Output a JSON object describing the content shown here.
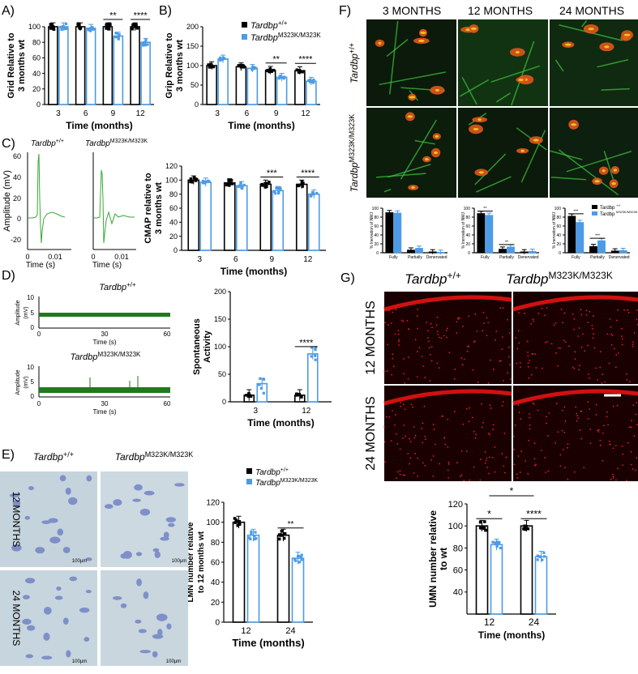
{
  "panel_labels": {
    "A": "A)",
    "B": "B)",
    "C": "C)",
    "D": "D)",
    "E": "E)",
    "F": "F)",
    "G": "G)"
  },
  "colors": {
    "wt": "#000000",
    "mut": "#4d9be6",
    "trace_c": "#38a838",
    "trace_d": "#1f7a1f",
    "wt_bar": "#000000"
  },
  "genotypes": {
    "wt_gene": "Tardbp",
    "wt_sup": "+/+",
    "mut_gene": "Tardbp",
    "mut_sup": "M323K/M323K"
  },
  "fig_text": {
    "time_months": "Time (months)",
    "time_s": "Time (s)",
    "amplitude_mv": "Amplitude (mV)",
    "amp_small_1": "Amplitude",
    "amp_small_2": "(mV)",
    "months_3": "3  MONTHS",
    "months_12": "12  MONTHS",
    "months_24": "24  MONTHS",
    "scale_100um": "100µm",
    "f_x_fully": "Fully",
    "f_x_partially": "Partially",
    "f_x_denervated": "Denervated",
    "f_y": "% Inervation of NMJ"
  },
  "chart_data": [
    {
      "id": "A",
      "type": "bar",
      "categories": [
        "3",
        "6",
        "9",
        "12"
      ],
      "xlabel": "Time (months)",
      "ylabel_lines": [
        "Grid Relative to",
        "3  months wt"
      ],
      "ylim": [
        0,
        100
      ],
      "yticks": [
        0,
        20,
        40,
        60,
        80,
        100
      ],
      "series": [
        {
          "name": "Tardbp+/+",
          "values": [
            100,
            100,
            100,
            100
          ]
        },
        {
          "name": "TardbpM323K/M323K",
          "values": [
            100,
            98,
            88,
            80
          ]
        }
      ],
      "significance": [
        {
          "group": "9",
          "label": "**"
        },
        {
          "group": "12",
          "label": "****"
        }
      ]
    },
    {
      "id": "B",
      "type": "bar",
      "categories": [
        "3",
        "6",
        "9",
        "12"
      ],
      "xlabel": "Time (months)",
      "ylabel_lines": [
        "Grip Relative to",
        "3  months wt"
      ],
      "ylim": [
        0,
        200
      ],
      "yticks": [
        0,
        50,
        100,
        150,
        200
      ],
      "series": [
        {
          "name": "Tardbp+/+",
          "values": [
            100,
            97,
            88,
            87
          ]
        },
        {
          "name": "TardbpM323K/M323K",
          "values": [
            117,
            93,
            70,
            60
          ]
        }
      ],
      "significance": [
        {
          "group": "9",
          "label": "**"
        },
        {
          "group": "12",
          "label": "****"
        }
      ],
      "legend": "top-right"
    },
    {
      "id": "C_trace",
      "type": "line",
      "title": "Tardbp+/+",
      "xlabel": "Time (s)",
      "ylabel": "Amplitude (mV)",
      "xlim": [
        0,
        0.014
      ],
      "ylim": [
        -25,
        65
      ],
      "xticks": [
        "0",
        "0.01"
      ],
      "yticks": [
        "-20",
        "0",
        "20",
        "40",
        "60"
      ]
    },
    {
      "id": "C",
      "type": "bar",
      "categories": [
        "3",
        "6",
        "9",
        "12"
      ],
      "xlabel": "Time (months)",
      "ylabel_lines": [
        "CMAP relative to",
        "3  months wt"
      ],
      "ylim": [
        0,
        120
      ],
      "yticks": [
        0,
        20,
        40,
        60,
        80,
        100,
        120
      ],
      "series": [
        {
          "name": "Tardbp+/+",
          "values": [
            100,
            96,
            94,
            94
          ]
        },
        {
          "name": "TardbpM323K/M323K",
          "values": [
            97,
            92,
            85,
            80
          ]
        }
      ],
      "significance": [
        {
          "group": "9",
          "label": "***"
        },
        {
          "group": "12",
          "label": "****"
        }
      ]
    },
    {
      "id": "D_trace",
      "type": "line",
      "xlabel": "Time (s)",
      "ylabel": "Amplitude (mV)",
      "xticks": [
        "0",
        "30",
        "60"
      ],
      "yticks": [
        "0",
        "5",
        "10"
      ]
    },
    {
      "id": "D",
      "type": "bar",
      "categories": [
        "3",
        "12"
      ],
      "xlabel": "Time (months)",
      "ylabel_lines": [
        "Spontaneous",
        "Activity"
      ],
      "ylim": [
        0,
        200
      ],
      "yticks": [
        0,
        50,
        100,
        150,
        200
      ],
      "series": [
        {
          "name": "Tardbp+/+",
          "values": [
            12,
            12
          ]
        },
        {
          "name": "TardbpM323K/M323K",
          "values": [
            33,
            87
          ]
        }
      ],
      "significance": [
        {
          "group": "12",
          "label": "****"
        }
      ]
    },
    {
      "id": "E",
      "type": "bar",
      "categories": [
        "12",
        "24"
      ],
      "xlabel": "Time (months)",
      "ylabel_lines": [
        "LMN number relative",
        "to 12  months wt"
      ],
      "ylim": [
        0,
        120
      ],
      "yticks": [
        0,
        20,
        40,
        60,
        80,
        100,
        120
      ],
      "series": [
        {
          "name": "Tardbp+/+",
          "values": [
            100,
            87
          ]
        },
        {
          "name": "TardbpM323K/M323K",
          "values": [
            87,
            64
          ]
        }
      ],
      "significance": [
        {
          "group": "24",
          "label": "**"
        }
      ],
      "legend": "top-right"
    },
    {
      "id": "F3",
      "type": "bar",
      "categories": [
        "Fully",
        "Partially",
        "Denervated"
      ],
      "ylabel": "% Inervation of NMJ",
      "ylim": [
        0,
        100
      ],
      "yticks": [
        0,
        20,
        40,
        60,
        80,
        100
      ],
      "series": [
        {
          "name": "Tardbp+/+",
          "values": [
            90,
            6,
            2
          ]
        },
        {
          "name": "TardbpM323K/M323K",
          "values": [
            89,
            10,
            1
          ]
        }
      ]
    },
    {
      "id": "F12",
      "type": "bar",
      "categories": [
        "Fully",
        "Partially",
        "Denervated"
      ],
      "ylabel": "% Inervation of NMJ",
      "ylim": [
        0,
        100
      ],
      "yticks": [
        0,
        20,
        40,
        60,
        80,
        100
      ],
      "series": [
        {
          "name": "Tardbp+/+",
          "values": [
            88,
            8,
            2
          ]
        },
        {
          "name": "TardbpM323K/M323K",
          "values": [
            84,
            13,
            3
          ]
        }
      ],
      "significance": [
        {
          "group": "Fully",
          "label": "**"
        },
        {
          "group": "Partially",
          "label": "**"
        }
      ]
    },
    {
      "id": "F24",
      "type": "bar",
      "categories": [
        "Fully",
        "Partially",
        "Denervated"
      ],
      "ylabel": "% Inervation of NMJ",
      "ylim": [
        0,
        100
      ],
      "yticks": [
        0,
        20,
        40,
        60,
        80,
        100
      ],
      "series": [
        {
          "name": "Tardbp+/+",
          "values": [
            82,
            14,
            4
          ]
        },
        {
          "name": "TardbpM323K/M323K",
          "values": [
            68,
            27,
            5
          ]
        }
      ],
      "significance": [
        {
          "group": "Fully",
          "label": "***"
        },
        {
          "group": "Partially",
          "label": "***"
        }
      ],
      "legend": "top-right"
    },
    {
      "id": "G",
      "type": "bar",
      "categories": [
        "12",
        "24"
      ],
      "xlabel": "Time (months)",
      "ylabel_lines": [
        "UMN number relative",
        "to wt"
      ],
      "ylim": [
        20,
        120
      ],
      "yticks": [
        40,
        60,
        80,
        100,
        120
      ],
      "series": [
        {
          "name": "Tardbp+/+",
          "values": [
            100,
            100
          ]
        },
        {
          "name": "TardbpM323K/M323K",
          "values": [
            83,
            72
          ]
        }
      ],
      "significance": [
        {
          "group": "12",
          "label": "*"
        },
        {
          "group": "24",
          "label": "****"
        },
        {
          "group": "cross",
          "label": "*"
        }
      ]
    }
  ]
}
